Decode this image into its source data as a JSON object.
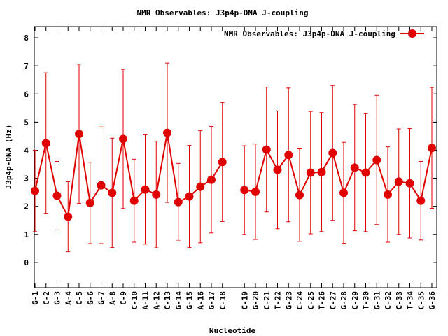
{
  "chart_data": {
    "type": "line",
    "title": "NMR Observables: J3p4p-DNA J-coupling",
    "xlabel": "Nucleotide",
    "ylabel": "J3p4p-DNA (Hz)",
    "ylim": [
      -0.9,
      8.4
    ],
    "yticks": [
      0,
      1,
      2,
      3,
      4,
      5,
      6,
      7,
      8
    ],
    "grid": false,
    "legend": {
      "position": "top-right",
      "label": "NMR Observables: J3p4p-DNA J-coupling"
    },
    "colors": {
      "series": "#e00000",
      "axis": "#000000",
      "background": "#ffffff"
    },
    "categories": [
      "G-1",
      "C-2",
      "G-3",
      "A-4",
      "C-5",
      "G-6",
      "G-7",
      "A-8",
      "C-9",
      "C-10",
      "A-11",
      "A-12",
      "C-13",
      "G-14",
      "G-15",
      "A-16",
      "G-17",
      "C-18",
      "",
      "C-19",
      "G-20",
      "C-21",
      "T-22",
      "G-23",
      "C-24",
      "C-25",
      "T-26",
      "C-27",
      "G-28",
      "C-29",
      "T-30",
      "G-31",
      "C-32",
      "C-33",
      "T-34",
      "C-35",
      "G-36"
    ],
    "series": [
      {
        "name": "NMR Observables: J3p4p-DNA J-coupling",
        "values": [
          2.55,
          4.25,
          2.38,
          1.63,
          4.58,
          2.12,
          2.75,
          2.48,
          4.4,
          2.2,
          2.6,
          2.42,
          4.62,
          2.15,
          2.35,
          2.7,
          2.95,
          3.58,
          null,
          2.58,
          2.52,
          4.02,
          3.3,
          3.83,
          2.4,
          3.2,
          3.22,
          3.9,
          2.48,
          3.38,
          3.2,
          3.65,
          2.42,
          2.88,
          2.82,
          2.2,
          4.08
        ],
        "error": [
          1.45,
          2.5,
          1.22,
          1.25,
          2.48,
          1.45,
          2.08,
          1.95,
          2.48,
          1.48,
          1.95,
          1.9,
          2.48,
          1.38,
          1.82,
          2.0,
          1.9,
          2.12,
          null,
          1.58,
          1.7,
          2.22,
          2.1,
          2.38,
          1.65,
          2.18,
          2.12,
          2.4,
          1.8,
          2.25,
          2.1,
          2.3,
          1.7,
          1.88,
          1.95,
          1.4,
          2.15
        ]
      }
    ]
  }
}
